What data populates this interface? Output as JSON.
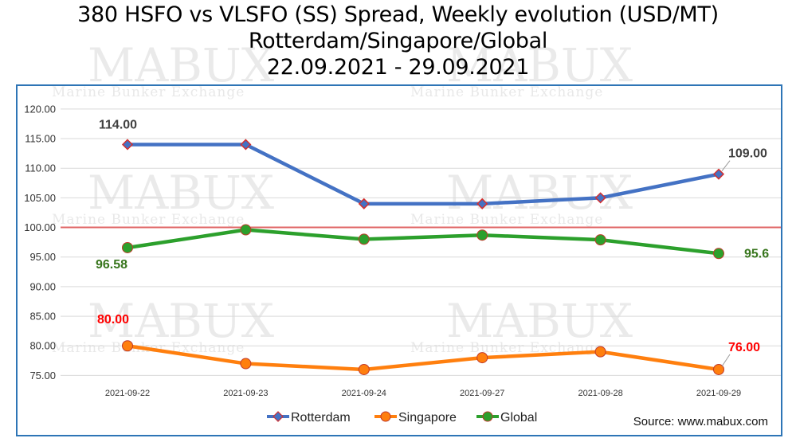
{
  "title": {
    "line1": "380 HSFO vs VLSFO (SS) Spread, Weekly evolution (USD/MT)",
    "line2": "Rotterdam/Singapore/Global",
    "line3": "22.09.2021 - 29.09.2021"
  },
  "watermark": {
    "brand": "MABUX",
    "tagline": "Marine Bunker Exchange"
  },
  "source": "Source: www.mabux.com",
  "colors": {
    "rotterdam": "#4472c4",
    "singapore": "#ff7f0e",
    "global": "#2ca02c",
    "reference": "#e06666",
    "frame": "#2e75b6",
    "grid": "#d9d9d9"
  },
  "chart_data": {
    "type": "line",
    "categories": [
      "2021-09-22",
      "2021-09-23",
      "2021-09-24",
      "2021-09-27",
      "2021-09-28",
      "2021-09-29"
    ],
    "ylim": [
      72.5,
      122
    ],
    "yticks": [
      "120.00",
      "115.00",
      "110.00",
      "105.00",
      "100.00",
      "95.00",
      "90.00",
      "85.00",
      "80.00",
      "75.00"
    ],
    "reference_line": 100,
    "grid": true,
    "legend_position": "bottom",
    "series": [
      {
        "name": "Rotterdam",
        "color": "#4472c4",
        "marker": "diamond",
        "values": [
          114,
          114,
          104,
          104,
          105,
          109
        ],
        "labels": [
          {
            "index": 0,
            "text": "114.00"
          },
          {
            "index": 5,
            "text": "109.00"
          }
        ],
        "label_color": "#404040"
      },
      {
        "name": "Singapore",
        "color": "#ff7f0e",
        "marker": "circle",
        "values": [
          80,
          77,
          76,
          78,
          79,
          76
        ],
        "labels": [
          {
            "index": 0,
            "text": "80.00"
          },
          {
            "index": 5,
            "text": "76.00"
          }
        ],
        "label_color": "#ff0000"
      },
      {
        "name": "Global",
        "color": "#2ca02c",
        "marker": "circle",
        "values": [
          96.58,
          99.6,
          98,
          98.7,
          97.9,
          95.6
        ],
        "labels": [
          {
            "index": 0,
            "text": "96.58"
          },
          {
            "index": 5,
            "text": "95.6"
          }
        ],
        "label_color": "#38761d"
      }
    ]
  }
}
